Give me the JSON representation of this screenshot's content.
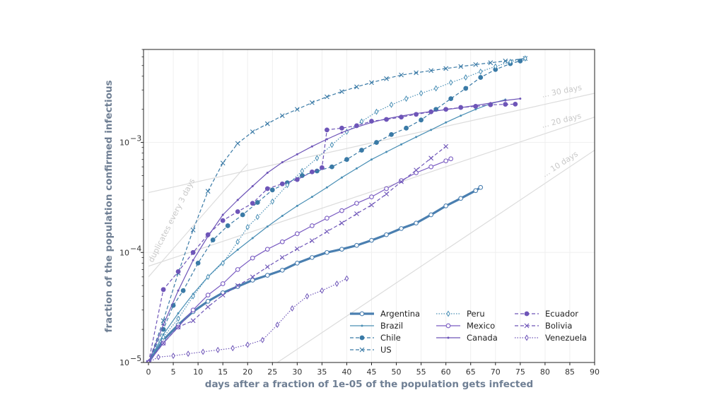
{
  "chart_data": {
    "type": "line",
    "xlabel": "days after a fraction of 1e-05 of the population gets infected",
    "ylabel": "fraction of the population confirmed infectious",
    "xlim": [
      -1,
      90
    ],
    "ylim": [
      1e-05,
      0.007
    ],
    "yscale": "log",
    "x_ticks": [
      "0",
      "5",
      "10",
      "15",
      "20",
      "25",
      "30",
      "35",
      "40",
      "45",
      "50",
      "55",
      "60",
      "65",
      "70",
      "75",
      "80",
      "85",
      "90"
    ],
    "y_ticks": [
      {
        "value": 1e-05,
        "label": "10",
        "exp": "−5"
      },
      {
        "value": 0.0001,
        "label": "10",
        "exp": "−4"
      },
      {
        "value": 0.001,
        "label": "10",
        "exp": "−3"
      }
    ],
    "grid": true,
    "legend_position": "lower-right",
    "reference_lines": [
      {
        "label": "duplicates every 3 days",
        "doubling_days": 3,
        "x": [
          0,
          20
        ],
        "y": [
          6e-05,
          0.00064
        ]
      },
      {
        "label": "... 30 days",
        "doubling_days": 30,
        "x": [
          0,
          90
        ],
        "y": [
          0.00035,
          0.0028
        ]
      },
      {
        "label": "... 20 days",
        "doubling_days": 20,
        "x": [
          0,
          90
        ],
        "y": [
          7.5e-05,
          0.0017
        ]
      },
      {
        "label": "... 10 days",
        "doubling_days": 10,
        "x": [
          26,
          90
        ],
        "y": [
          1e-05,
          0.00085
        ]
      }
    ],
    "series": [
      {
        "name": "Argentina",
        "color": "#4a7fb0",
        "dash": "solid",
        "marker": "open-circle",
        "width": 3.2,
        "x": [
          0,
          3,
          6,
          9,
          12,
          15,
          18,
          21,
          24,
          27,
          30,
          33,
          36,
          39,
          42,
          45,
          48,
          51,
          54,
          57,
          60,
          63,
          66,
          67
        ],
        "y": [
          1e-05,
          1.6e-05,
          2.2e-05,
          2.9e-05,
          3.6e-05,
          4.3e-05,
          4.9e-05,
          5.6e-05,
          6.2e-05,
          6.9e-05,
          8e-05,
          9e-05,
          0.0001,
          0.000107,
          0.000116,
          0.000129,
          0.000145,
          0.000165,
          0.000185,
          0.00022,
          0.000265,
          0.00031,
          0.000365,
          0.00039
        ]
      },
      {
        "name": "Brazil",
        "color": "#4a8fb5",
        "dash": "solid",
        "marker": "small-dot",
        "width": 1.2,
        "x": [
          0,
          3,
          6,
          9,
          12,
          15,
          18,
          21,
          24,
          27,
          30,
          33,
          36,
          39,
          42,
          45,
          48,
          51,
          54,
          57,
          60,
          63,
          66,
          69,
          72
        ],
        "y": [
          1e-05,
          1.8e-05,
          2.8e-05,
          4.2e-05,
          6e-05,
          8.2e-05,
          0.000106,
          0.000135,
          0.000172,
          0.000215,
          0.000265,
          0.00032,
          0.00039,
          0.00048,
          0.00058,
          0.0007,
          0.00082,
          0.00096,
          0.00112,
          0.0013,
          0.00152,
          0.00175,
          0.002,
          0.00225,
          0.00245
        ]
      },
      {
        "name": "Chile",
        "color": "#3a7aa6",
        "dash": "dashed",
        "marker": "filled-circle",
        "width": 1.2,
        "x": [
          0,
          3,
          5,
          7,
          10,
          13,
          16,
          19,
          22,
          25,
          28,
          31,
          34,
          37,
          40,
          43,
          46,
          49,
          52,
          55,
          58,
          61,
          64,
          67,
          70,
          73,
          75
        ],
        "y": [
          1e-05,
          2e-05,
          3.3e-05,
          4.5e-05,
          8e-05,
          0.00013,
          0.000175,
          0.00022,
          0.000285,
          0.00037,
          0.00043,
          0.0005,
          0.00055,
          0.0006,
          0.0007,
          0.00085,
          0.001,
          0.00118,
          0.00135,
          0.0016,
          0.002,
          0.0025,
          0.0031,
          0.0039,
          0.0046,
          0.0052,
          0.0055
        ]
      },
      {
        "name": "US",
        "color": "#3a7aa6",
        "dash": "dashed",
        "marker": "x",
        "width": 1.2,
        "x": [
          0,
          3,
          6,
          9,
          12,
          15,
          18,
          21,
          24,
          27,
          30,
          33,
          36,
          39,
          42,
          45,
          48,
          51,
          54,
          57,
          60,
          63,
          66,
          69,
          72,
          76
        ],
        "y": [
          1e-05,
          2.4e-05,
          6.5e-05,
          0.00016,
          0.00036,
          0.00065,
          0.00098,
          0.00125,
          0.00148,
          0.00175,
          0.002,
          0.0023,
          0.0026,
          0.0029,
          0.0032,
          0.0035,
          0.0038,
          0.0041,
          0.0043,
          0.0045,
          0.0047,
          0.0049,
          0.0051,
          0.0053,
          0.0055,
          0.0058
        ]
      },
      {
        "name": "Peru",
        "color": "#4a8fb5",
        "dash": "dotted",
        "marker": "open-diamond",
        "width": 1.2,
        "x": [
          0,
          3,
          6,
          9,
          12,
          15,
          18,
          20,
          22,
          25,
          28,
          31,
          34,
          37,
          40,
          43,
          46,
          49,
          52,
          55,
          58,
          61,
          64,
          67,
          70,
          73,
          76
        ],
        "y": [
          1e-05,
          1.7e-05,
          2.5e-05,
          4e-05,
          6e-05,
          8e-05,
          0.000125,
          0.00017,
          0.00021,
          0.00029,
          0.00041,
          0.00055,
          0.00072,
          0.00095,
          0.00125,
          0.00155,
          0.0019,
          0.0022,
          0.0025,
          0.0028,
          0.0031,
          0.0035,
          0.0039,
          0.0044,
          0.0049,
          0.0054,
          0.0058
        ]
      },
      {
        "name": "Mexico",
        "color": "#7a5cc2",
        "dash": "solid",
        "marker": "open-circle",
        "width": 1.2,
        "x": [
          0,
          3,
          6,
          9,
          12,
          15,
          18,
          21,
          24,
          27,
          30,
          33,
          36,
          39,
          42,
          45,
          48,
          51,
          54,
          57,
          60,
          61
        ],
        "y": [
          1e-05,
          1.5e-05,
          2.1e-05,
          3e-05,
          4.1e-05,
          5.2e-05,
          7e-05,
          8.9e-05,
          0.000107,
          0.000125,
          0.000148,
          0.000175,
          0.000205,
          0.00024,
          0.00028,
          0.00032,
          0.00038,
          0.00045,
          0.00053,
          0.0006,
          0.00068,
          0.00071
        ]
      },
      {
        "name": "Canada",
        "color": "#6e55b8",
        "dash": "solid",
        "marker": "small-dot",
        "width": 1.2,
        "x": [
          0,
          3,
          6,
          9,
          12,
          15,
          18,
          21,
          24,
          27,
          30,
          33,
          36,
          39,
          42,
          45,
          48,
          51,
          54,
          57,
          60,
          63,
          66,
          69,
          72,
          75
        ],
        "y": [
          1e-05,
          2.2e-05,
          4.5e-05,
          8.5e-05,
          0.00014,
          0.00022,
          0.0003,
          0.0004,
          0.00053,
          0.00066,
          0.00078,
          0.00092,
          0.00107,
          0.00123,
          0.00138,
          0.00152,
          0.00164,
          0.00174,
          0.00183,
          0.00191,
          0.00199,
          0.00207,
          0.00217,
          0.00228,
          0.00241,
          0.0025
        ]
      },
      {
        "name": "Ecuador",
        "color": "#6e55b8",
        "dash": "dashed",
        "marker": "filled-circle",
        "width": 1.2,
        "x": [
          0,
          3,
          6,
          9,
          12,
          15,
          18,
          21,
          24,
          27,
          30,
          33,
          35,
          36,
          39,
          42,
          45,
          48,
          51,
          54,
          57,
          60,
          63,
          66,
          69,
          72,
          74
        ],
        "y": [
          1e-05,
          4.6e-05,
          6.7e-05,
          0.0001,
          0.000145,
          0.000195,
          0.000235,
          0.00028,
          0.00038,
          0.00042,
          0.00046,
          0.00054,
          0.00059,
          0.0013,
          0.00135,
          0.00142,
          0.00156,
          0.00162,
          0.0017,
          0.0018,
          0.0019,
          0.002,
          0.00208,
          0.00213,
          0.0022,
          0.00222,
          0.00223
        ]
      },
      {
        "name": "Bolivia",
        "color": "#6e55b8",
        "dash": "dashed",
        "marker": "x",
        "width": 1.2,
        "x": [
          0,
          3,
          6,
          9,
          12,
          15,
          18,
          21,
          24,
          27,
          30,
          33,
          36,
          39,
          42,
          45,
          48,
          51,
          54,
          57,
          60
        ],
        "y": [
          1e-05,
          1.5e-05,
          2.1e-05,
          2.4e-05,
          3.2e-05,
          4.1e-05,
          5e-05,
          6e-05,
          7.4e-05,
          9e-05,
          0.000108,
          0.000128,
          0.000155,
          0.000185,
          0.000225,
          0.00027,
          0.00034,
          0.00044,
          0.00056,
          0.00072,
          0.00092
        ]
      },
      {
        "name": "Venezuela",
        "color": "#6e55b8",
        "dash": "dotted",
        "marker": "open-diamond",
        "width": 1.2,
        "x": [
          0,
          2,
          5,
          8,
          11,
          14,
          17,
          20,
          23,
          26,
          29,
          32,
          35,
          38,
          40
        ],
        "y": [
          1e-05,
          1.12e-05,
          1.15e-05,
          1.2e-05,
          1.25e-05,
          1.3e-05,
          1.35e-05,
          1.45e-05,
          1.6e-05,
          2.2e-05,
          3.1e-05,
          4e-05,
          4.5e-05,
          5.2e-05,
          5.8e-05
        ]
      }
    ]
  }
}
